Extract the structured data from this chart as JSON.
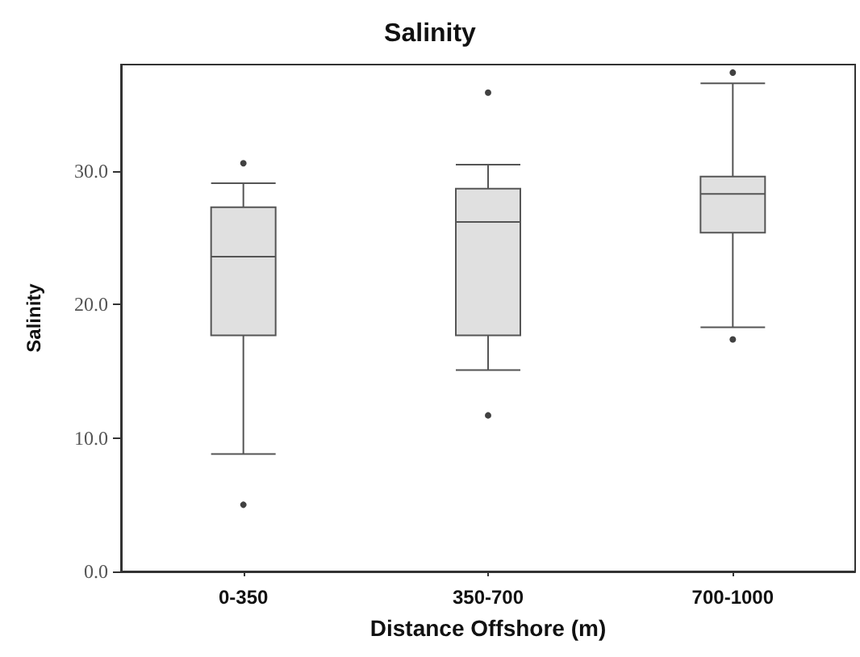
{
  "chart_data": {
    "type": "box",
    "title": "Salinity",
    "xlabel": "Distance Offshore (m)",
    "ylabel": "Salinity",
    "categories": [
      "0-350",
      "350-700",
      "700-1000"
    ],
    "boxes": [
      {
        "low": 8.8,
        "q1": 17.7,
        "median": 23.6,
        "q3": 27.3,
        "high": 29.1,
        "outliers": [
          30.6,
          5.0
        ]
      },
      {
        "low": 15.1,
        "q1": 17.7,
        "median": 26.2,
        "q3": 28.7,
        "high": 30.5,
        "outliers": [
          35.9,
          11.7
        ]
      },
      {
        "low": 18.3,
        "q1": 25.4,
        "median": 28.3,
        "q3": 29.6,
        "high": 36.6,
        "outliers": [
          37.4,
          17.4
        ]
      }
    ],
    "color": "#e0e0e0",
    "ylim": [
      0,
      38
    ],
    "yticks": [
      {
        "value": 0,
        "label": "0.0"
      },
      {
        "value": 10,
        "label": "10.0"
      },
      {
        "value": 20,
        "label": "20.0"
      },
      {
        "value": 30,
        "label": "30.0"
      }
    ],
    "grid": false,
    "legend": false
  }
}
